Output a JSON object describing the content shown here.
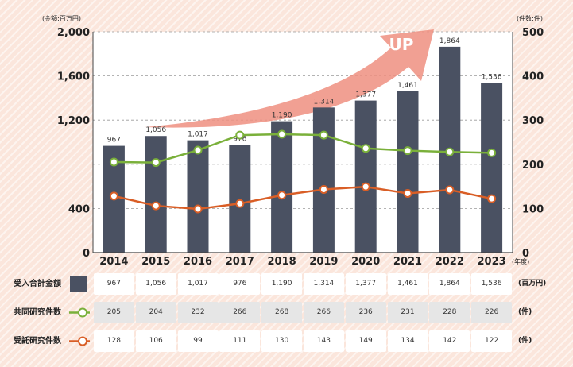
{
  "chart_data": {
    "type": "bar+line",
    "categories": [
      "2014",
      "2015",
      "2016",
      "2017",
      "2018",
      "2019",
      "2020",
      "2021",
      "2022",
      "2023"
    ],
    "x_unit": "(年度)",
    "y_left": {
      "unit": "(金額:百万円)",
      "ticks": [
        "2,000",
        "1,600",
        "1,200",
        "400",
        "0"
      ],
      "ylim": [
        0,
        2000
      ]
    },
    "y_right": {
      "unit": "(件数:件)",
      "ticks": [
        "500",
        "400",
        "300",
        "200",
        "100",
        "0"
      ],
      "ylim": [
        0,
        500
      ]
    },
    "bars": {
      "name": "受入合計金額",
      "values": [
        967,
        1056,
        1017,
        976,
        1190,
        1314,
        1377,
        1461,
        1864,
        1536
      ],
      "labels": [
        "967",
        "1,056",
        "1,017",
        "976",
        "1,190",
        "1,314",
        "1,377",
        "1,461",
        "1,864",
        "1,536"
      ],
      "color": "#4a5162"
    },
    "lines": [
      {
        "name": "共同研究件数",
        "values": [
          205,
          204,
          232,
          266,
          268,
          266,
          236,
          231,
          228,
          226
        ],
        "color": "#7ab03a"
      },
      {
        "name": "受託研究件数",
        "values": [
          128,
          106,
          99,
          111,
          130,
          143,
          149,
          134,
          142,
          122
        ],
        "color": "#d95e26"
      }
    ],
    "arrow": {
      "text": "UP",
      "color": "#ef8f80"
    },
    "grid": "horizontal-dashed",
    "table": [
      {
        "label": "受入合計金額",
        "unit": "(百万円)",
        "values": [
          "967",
          "1,056",
          "1,017",
          "976",
          "1,190",
          "1,314",
          "1,377",
          "1,461",
          "1,864",
          "1,536"
        ]
      },
      {
        "label": "共同研究件数",
        "unit": "(件)",
        "values": [
          "205",
          "204",
          "232",
          "266",
          "268",
          "266",
          "236",
          "231",
          "228",
          "226"
        ]
      },
      {
        "label": "受託研究件数",
        "unit": "(件)",
        "values": [
          "128",
          "106",
          "99",
          "111",
          "130",
          "143",
          "149",
          "134",
          "142",
          "122"
        ]
      }
    ]
  }
}
